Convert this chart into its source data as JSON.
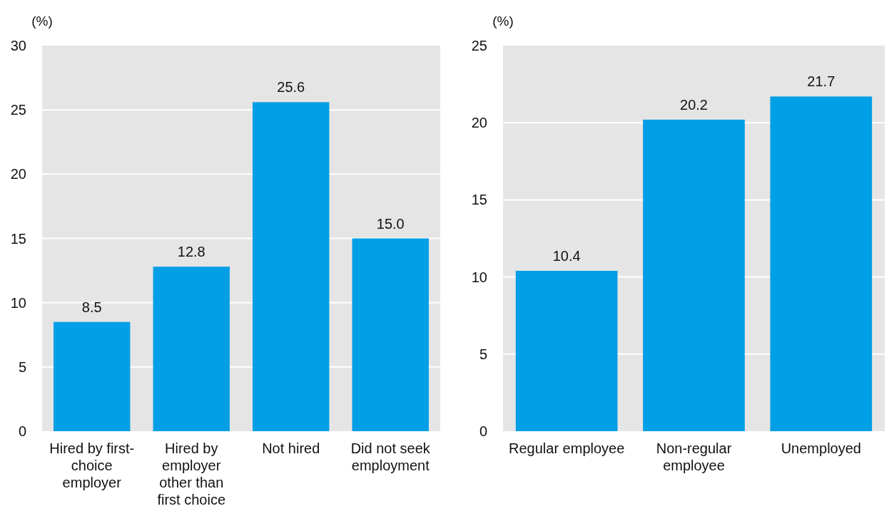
{
  "chart_data": [
    {
      "type": "bar",
      "ylabel": "(%)",
      "categories": [
        "Hired by first-choice employer",
        "Hired by employer other than first choice",
        "Not hired",
        "Did not seek employment"
      ],
      "values": [
        8.5,
        12.8,
        25.6,
        15.0
      ],
      "value_labels": [
        "8.5",
        "12.8",
        "25.6",
        "15.0"
      ],
      "color": "#019fe5",
      "ylim": [
        0,
        30
      ],
      "yticks": [
        0,
        5,
        10,
        15,
        20,
        25,
        30
      ],
      "grid": "y"
    },
    {
      "type": "bar",
      "ylabel": "(%)",
      "categories": [
        "Regular employee",
        "Non-regular employee",
        "Unemployed"
      ],
      "values": [
        10.4,
        20.2,
        21.7
      ],
      "value_labels": [
        "10.4",
        "20.2",
        "21.7"
      ],
      "color": "#019fe5",
      "ylim": [
        0,
        25
      ],
      "yticks": [
        0,
        5,
        10,
        15,
        20,
        25
      ],
      "grid": "y"
    }
  ]
}
